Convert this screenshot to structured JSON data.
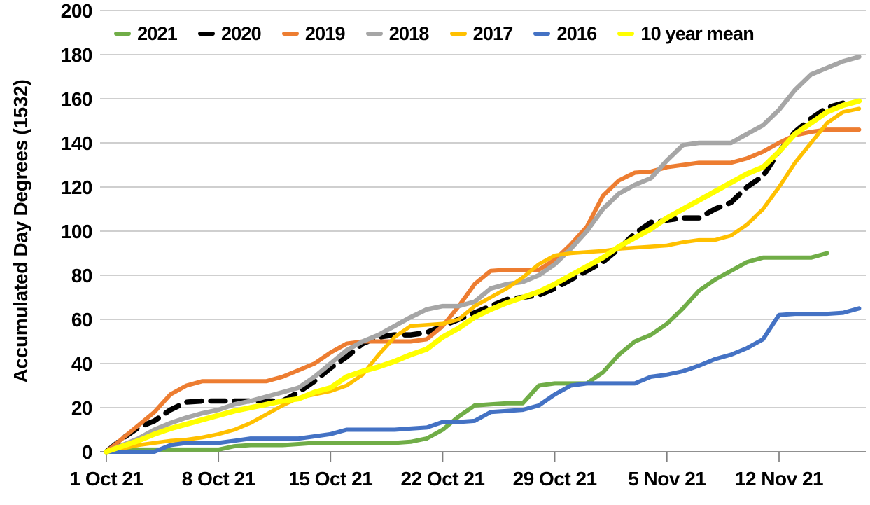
{
  "colors": {
    "background": "#FFFFFF",
    "grid_line": "#BFBFBF",
    "axis_line": "#808080",
    "text": "#000000",
    "series_2021": "#70AD47",
    "series_2020": "#000000",
    "series_2019": "#ED7D31",
    "series_2018": "#A6A6A6",
    "series_2017": "#FFC000",
    "series_2016": "#4472C4",
    "series_mean": "#FFFF00"
  },
  "chart_data": {
    "type": "line",
    "title": "",
    "xlabel": "",
    "ylabel": "Accumulated Day Degrees (1532)",
    "ylim": [
      0,
      200
    ],
    "ytick_step": 20,
    "y_ticks": [
      0,
      20,
      40,
      60,
      80,
      100,
      120,
      140,
      160,
      180,
      200
    ],
    "grid": "horizontal",
    "legend_position": "top",
    "x_unit": "days since 1 Oct 21",
    "x_range_days": [
      0,
      47
    ],
    "x_tick_days": [
      0,
      7,
      14,
      21,
      28,
      35,
      42
    ],
    "x_tick_labels": [
      "1 Oct 21",
      "8 Oct 21",
      "15 Oct 21",
      "22 Oct 21",
      "29 Oct 21",
      "5 Nov 21",
      "12 Nov 21"
    ],
    "series": [
      {
        "id": "2021",
        "label": "2021",
        "color": "#70AD47",
        "width": 6,
        "dash": null,
        "values": [
          0,
          1,
          1,
          1,
          1,
          1,
          1,
          1,
          2.5,
          3,
          3,
          3,
          3.5,
          4,
          4,
          4,
          4,
          4,
          4,
          4.5,
          6,
          10,
          16,
          21,
          21.5,
          22,
          22,
          30,
          31,
          31,
          31,
          36,
          44,
          50,
          53,
          58,
          65,
          73,
          78,
          82,
          86,
          88,
          88,
          88,
          88,
          90,
          null,
          null
        ]
      },
      {
        "id": "2020",
        "label": "2020",
        "color": "#000000",
        "width": 7.5,
        "dash": "21 13",
        "values": [
          0,
          6,
          11,
          14,
          19,
          22.5,
          23,
          23,
          23,
          23,
          23,
          23,
          27,
          32,
          38,
          43,
          49,
          52,
          53,
          53,
          54,
          57,
          60,
          63,
          66,
          69,
          70,
          71,
          74,
          78,
          82,
          86,
          92,
          99,
          104,
          105,
          106,
          106,
          110,
          113,
          120,
          125,
          136,
          145,
          151,
          156,
          158,
          null
        ]
      },
      {
        "id": "2019",
        "label": "2019",
        "color": "#ED7D31",
        "width": 6,
        "dash": null,
        "values": [
          0,
          6,
          12,
          18,
          26,
          30,
          32,
          32,
          32,
          32,
          32,
          34,
          37,
          40,
          45,
          49,
          50,
          50,
          50,
          50,
          51,
          57,
          66,
          76,
          82,
          82.5,
          82.5,
          82.5,
          87,
          94,
          102,
          116,
          123,
          126.5,
          127,
          129,
          130,
          131,
          131,
          131,
          133,
          136,
          140,
          143.5,
          145,
          146,
          146,
          146
        ]
      },
      {
        "id": "2018",
        "label": "2018",
        "color": "#A6A6A6",
        "width": 6.5,
        "dash": null,
        "values": [
          0,
          3,
          6,
          10,
          13,
          15.5,
          17.5,
          19,
          21.5,
          23,
          25,
          27,
          29,
          34,
          40,
          46,
          50,
          53,
          57,
          61,
          64.5,
          66,
          66,
          68,
          74,
          76,
          77,
          80,
          85,
          92,
          100,
          110,
          117,
          121,
          124,
          132,
          139,
          140,
          140,
          140,
          144,
          148,
          155,
          164,
          171,
          174,
          177,
          179
        ]
      },
      {
        "id": "2017",
        "label": "2017",
        "color": "#FFC000",
        "width": 5.5,
        "dash": null,
        "values": [
          0,
          1.5,
          3,
          4,
          5,
          5.5,
          6.5,
          8,
          10,
          13,
          17,
          21,
          24.5,
          26,
          27.5,
          30,
          35,
          44,
          52,
          57,
          57.5,
          58,
          60,
          66,
          70,
          74,
          79,
          85,
          89,
          90,
          90.5,
          91,
          92,
          92.5,
          93,
          93.5,
          95,
          96,
          96,
          98,
          103,
          110,
          120,
          131,
          140,
          149,
          154,
          155.5
        ]
      },
      {
        "id": "2016",
        "label": "2016",
        "color": "#4472C4",
        "width": 6,
        "dash": null,
        "values": [
          0,
          0,
          0,
          0,
          3,
          4,
          4,
          4,
          5,
          6,
          6,
          6,
          6,
          7,
          8,
          10,
          10,
          10,
          10,
          10.5,
          11,
          13.5,
          13.5,
          14,
          18,
          18.5,
          19,
          21,
          26,
          30,
          31,
          31,
          31,
          31,
          34,
          35,
          36.5,
          39,
          42,
          44,
          47,
          51,
          62,
          62.5,
          62.5,
          62.5,
          63,
          65
        ]
      },
      {
        "id": "mean10",
        "label": "10 year mean",
        "color": "#FFFF00",
        "width": 7.5,
        "dash": null,
        "values": [
          0,
          2.5,
          5,
          8,
          10.5,
          12.5,
          14.5,
          16.5,
          18.5,
          20,
          21.5,
          23,
          24,
          27,
          29,
          34,
          36.5,
          38.5,
          41,
          44,
          46.5,
          52,
          56,
          61,
          64.5,
          67.5,
          70,
          72.5,
          76,
          80,
          84,
          88,
          93,
          97,
          101,
          106,
          110,
          114,
          118,
          122,
          126,
          129,
          136,
          144,
          149,
          154,
          157,
          159
        ]
      }
    ]
  }
}
